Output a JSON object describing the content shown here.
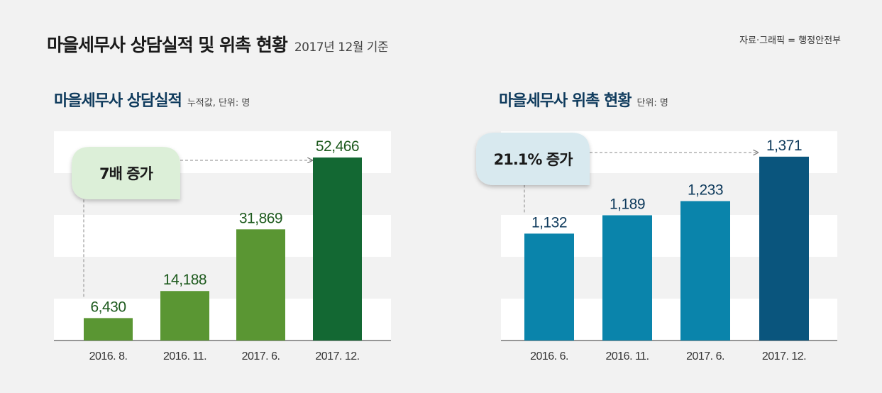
{
  "header": {
    "title": "마을세무사 상담실적 및 위촉 현황",
    "subtitle": "2017년 12월 기준",
    "source": "자료·그래픽 = 행정안전부"
  },
  "colors": {
    "background": "#f2f2f2",
    "band": "#ffffff",
    "green_light": "#5a9633",
    "green_dark": "#136833",
    "blue_light": "#0a84ab",
    "blue_dark": "#0a557d",
    "label_green": "#1d5a1d",
    "label_blue": "#0e3a5c",
    "callout_green": "#dcefd8",
    "callout_blue": "#d8e9ef"
  },
  "chart_data": [
    {
      "type": "bar",
      "title": "마을세무사 상담실적",
      "unit": "누적값, 단위: 명",
      "categories": [
        "2016. 8.",
        "2016. 11.",
        "2017. 6.",
        "2017. 12."
      ],
      "values": [
        6430,
        14188,
        31869,
        52466
      ],
      "value_labels": [
        "6,430",
        "14,188",
        "31,869",
        "52,466"
      ],
      "ylim": [
        0,
        60000
      ],
      "annotation": "7배 증가"
    },
    {
      "type": "bar",
      "title": "마을세무사 위촉 현황",
      "unit": "단위: 명",
      "categories": [
        "2016. 6.",
        "2016. 11.",
        "2017. 6.",
        "2017. 12."
      ],
      "values": [
        1132,
        1189,
        1233,
        1371
      ],
      "value_labels": [
        "1,132",
        "1,189",
        "1,233",
        "1,371"
      ],
      "ylim": [
        800,
        1450
      ],
      "annotation": "21.1% 증가"
    }
  ]
}
